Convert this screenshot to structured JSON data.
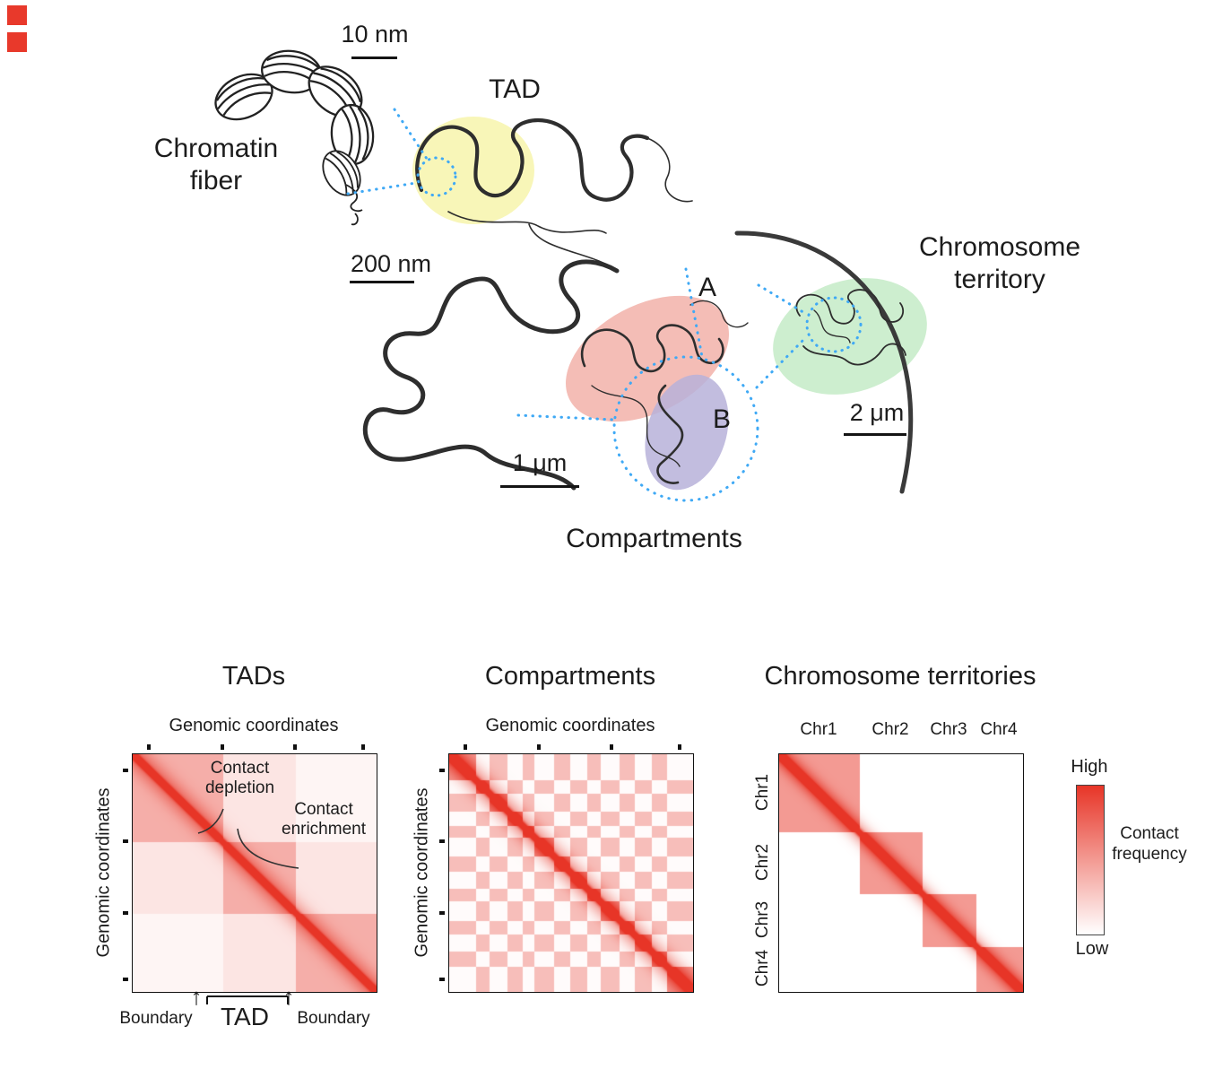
{
  "colors": {
    "heat_red": "#e73527",
    "accent_blue": "#3fa9f5",
    "tad_yellow": "#f7f4ab",
    "compartment_a_pink": "#f2b1a9",
    "compartment_b_purple": "#b7b1d9",
    "territory_green": "#c8ecca",
    "marker_red": "#e8392b",
    "ink": "#1c1c1c"
  },
  "illustration": {
    "scale_10nm": "10 nm",
    "chromatin_fiber_line1": "Chromatin",
    "chromatin_fiber_line2": "fiber",
    "tad_label": "TAD",
    "scale_200nm": "200 nm",
    "compartment_a_label": "A",
    "compartment_b_label": "B",
    "scale_1um": "1 μm",
    "scale_2um": "2 μm",
    "territory_line1": "Chromosome",
    "territory_line2": "territory",
    "compartments_label": "Compartments"
  },
  "maps": {
    "tads": {
      "title": "TADs",
      "xlabel": "Genomic coordinates",
      "ylabel": "Genomic coordinates",
      "annotation_depletion_line1": "Contact",
      "annotation_depletion_line2": "depletion",
      "annotation_enrichment_line1": "Contact",
      "annotation_enrichment_line2": "enrichment",
      "boundary_left": "Boundary",
      "tad_bracket": "TAD",
      "boundary_right": "Boundary",
      "arrow": "↑"
    },
    "compartments": {
      "title": "Compartments",
      "xlabel": "Genomic coordinates",
      "ylabel": "Genomic coordinates"
    },
    "territories": {
      "title": "Chromosome territories",
      "col_labels": [
        "Chr1",
        "Chr2",
        "Chr3",
        "Chr4"
      ],
      "row_labels": [
        "Chr1",
        "Chr2",
        "Chr3",
        "Chr4"
      ]
    }
  },
  "legend": {
    "high": "High",
    "low": "Low",
    "label_line1": "Contact",
    "label_line2": "frequency"
  },
  "chart_data": [
    {
      "type": "heatmap",
      "title": "TADs",
      "xlabel": "Genomic coordinates",
      "ylabel": "Genomic coordinates",
      "pattern": "tads",
      "description": "Hi-C style contact map: three TAD blocks of contact enrichment along the diagonal separated by boundaries with contact depletion between blocks; strong red diagonal of highest contact frequency.",
      "segments": [
        0.37,
        0.3,
        0.33
      ],
      "base_same": 0.4,
      "base_near": 0.13,
      "base_far": 0.05,
      "diag_sigma": 0.013,
      "glow_sigma": 0.05,
      "glow_amp": 0.35,
      "ticks": [
        0.07,
        0.37,
        0.67,
        0.95
      ],
      "annotations": [
        "Contact depletion",
        "Contact enrichment",
        "Boundary",
        "TAD",
        "Boundary"
      ],
      "value_scale": [
        "Low",
        "High"
      ]
    },
    {
      "type": "heatmap",
      "title": "Compartments",
      "xlabel": "Genomic coordinates",
      "ylabel": "Genomic coordinates",
      "pattern": "checkerboard",
      "description": "Hi-C style contact map with plaid/checkerboard pattern of alternating A/B compartments; same-type segments show enriched contacts, opposite types near white; strong red diagonal.",
      "segments": [
        0.11,
        0.055,
        0.075,
        0.06,
        0.05,
        0.08,
        0.065,
        0.07,
        0.055,
        0.08,
        0.06,
        0.07,
        0.065,
        0.105
      ],
      "types": [
        "A",
        "B",
        "A",
        "B",
        "A",
        "B",
        "A",
        "B",
        "A",
        "B",
        "A",
        "B",
        "A",
        "B"
      ],
      "base_same": 0.5,
      "base_match": 0.32,
      "base_mismatch": 0.02,
      "diag_sigma": 0.014,
      "glow_sigma": 0.05,
      "glow_amp": 0.5,
      "ticks": [
        0.07,
        0.37,
        0.67,
        0.95
      ],
      "value_scale": [
        "Low",
        "High"
      ]
    },
    {
      "type": "heatmap",
      "title": "Chromosome territories",
      "pattern": "blocks",
      "description": "Whole-genome contact map: four chromosomes form red blocks on the diagonal (intra-chromosomal contacts), white off-diagonal (inter-chromosomal), strong red diagonal.",
      "categories": [
        "Chr1",
        "Chr2",
        "Chr3",
        "Chr4"
      ],
      "segments": [
        0.33,
        0.26,
        0.22,
        0.19
      ],
      "base_same": 0.5,
      "diag_sigma": 0.013,
      "glow_sigma": 0.04,
      "glow_amp": 0.45,
      "value_scale": [
        "Low",
        "High"
      ]
    }
  ]
}
